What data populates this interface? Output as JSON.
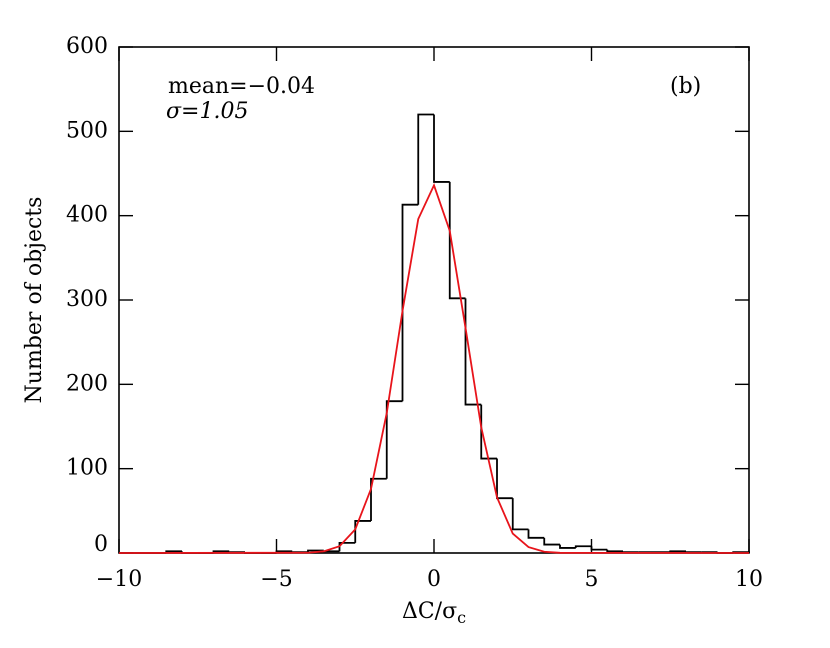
{
  "chart_data": {
    "type": "histogram",
    "x_label": "ΔC/σ",
    "x_label_sub": "c",
    "y_label": "Number of objects",
    "annotations": [
      "mean=−0.04",
      "σ=1.05",
      "(b)"
    ],
    "bins": [
      -10,
      -9.5,
      -9,
      -8.5,
      -8,
      -7.5,
      -7,
      -6.5,
      -6,
      -5.5,
      -5,
      -4.5,
      -4,
      -3.5,
      -3,
      -2.5,
      -2,
      -1.5,
      -1,
      -0.5,
      0,
      0.5,
      1,
      1.5,
      2,
      2.5,
      3,
      3.5,
      4,
      4.5,
      5,
      5.5,
      6,
      6.5,
      7,
      7.5,
      8,
      8.5,
      9,
      9.5,
      10
    ],
    "values": [
      0,
      0,
      0,
      2,
      0,
      0,
      2,
      1,
      0,
      0,
      2,
      1,
      3,
      2,
      12,
      38,
      88,
      180,
      413,
      520,
      440,
      302,
      176,
      112,
      65,
      28,
      18,
      10,
      6,
      8,
      4,
      2,
      1,
      1,
      1,
      2,
      1,
      1,
      0,
      1
    ],
    "color": "#000000",
    "fit": {
      "name": "Gaussian fit",
      "color": "#e8141b",
      "x": [
        -10,
        -4,
        -3.5,
        -3,
        -2.5,
        -2,
        -1.5,
        -1,
        -0.5,
        0,
        0.5,
        1,
        1.5,
        2,
        2.5,
        3,
        3.5,
        4,
        10
      ],
      "values": [
        0,
        0.3,
        2,
        8,
        28,
        76,
        166,
        287,
        396,
        436,
        382,
        267,
        149,
        66,
        23,
        7,
        1.5,
        0.2,
        0
      ]
    },
    "xlim": [
      -10,
      10
    ],
    "xticks": [
      {
        "value": -10,
        "label": "−10"
      },
      {
        "value": -5,
        "label": "−5"
      },
      0,
      5,
      10
    ],
    "ylim": [
      0,
      600
    ],
    "yticks": [
      0,
      100,
      200,
      300,
      400,
      500,
      600
    ]
  }
}
